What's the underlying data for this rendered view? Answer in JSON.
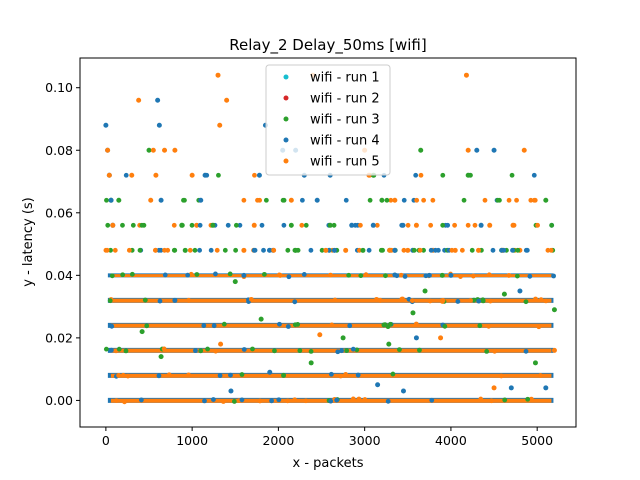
{
  "chart_data": {
    "type": "scatter",
    "title": "Relay_2 Delay_50ms [wifi]",
    "xlabel": "x - packets",
    "ylabel": "y - latency (s)",
    "xlim": [
      -300,
      5450
    ],
    "ylim": [
      -0.0085,
      0.1095
    ],
    "xticks": [
      0,
      1000,
      2000,
      3000,
      4000,
      5000
    ],
    "yticks": [
      0.0,
      0.02,
      0.04,
      0.06,
      0.08,
      0.1
    ],
    "xtick_labels": [
      "0",
      "1000",
      "2000",
      "3000",
      "4000",
      "5000"
    ],
    "ytick_labels": [
      "0.00",
      "0.02",
      "0.04",
      "0.06",
      "0.08",
      "0.10"
    ],
    "legend_position": "upper-center",
    "grid": false,
    "packet_range": [
      0,
      5200
    ],
    "latency_levels": [
      0.0,
      0.008,
      0.016,
      0.024,
      0.032,
      0.04,
      0.048,
      0.056,
      0.064,
      0.072,
      0.08,
      0.088,
      0.096,
      0.104
    ],
    "series": [
      {
        "name": "wifi - run 1",
        "color": "#17becf"
      },
      {
        "name": "wifi - run 2",
        "color": "#d62728"
      },
      {
        "name": "wifi - run 3",
        "color": "#2ca02c",
        "points": [
          [
            60,
            0.064
          ],
          [
            150,
            0.064
          ],
          [
            500,
            0.08
          ],
          [
            880,
            0.056
          ],
          [
            1500,
            0.038
          ],
          [
            1800,
            0.026
          ],
          [
            2200,
            0.048
          ],
          [
            2600,
            0.056
          ],
          [
            2750,
            0.02
          ],
          [
            3100,
            0.072
          ],
          [
            3200,
            0.064
          ],
          [
            3650,
            0.08
          ],
          [
            3700,
            0.035
          ],
          [
            4200,
            0.072
          ],
          [
            5100,
            0.064
          ],
          [
            5200,
            0.029
          ],
          [
            640,
            0.014
          ],
          [
            2380,
            0.012
          ],
          [
            3280,
            0.018
          ],
          [
            4620,
            0.034
          ],
          [
            920,
            0.048
          ],
          [
            1240,
            0.056
          ],
          [
            2980,
            0.048
          ],
          [
            3900,
            0.04
          ],
          [
            420,
            0.022
          ],
          [
            2060,
            0.008
          ],
          [
            3560,
            0.028
          ],
          [
            4980,
            0.012
          ]
        ]
      },
      {
        "name": "wifi - run 4",
        "color": "#1f77b4",
        "points": [
          [
            0,
            0.088
          ],
          [
            20,
            0.08
          ],
          [
            40,
            0.072
          ],
          [
            60,
            0.064
          ],
          [
            80,
            0.056
          ],
          [
            600,
            0.096
          ],
          [
            620,
            0.088
          ],
          [
            640,
            0.064
          ],
          [
            1100,
            0.064
          ],
          [
            1150,
            0.072
          ],
          [
            1450,
            0.003
          ],
          [
            1780,
            0.072
          ],
          [
            1850,
            0.088
          ],
          [
            2050,
            0.08
          ],
          [
            2200,
            0.08
          ],
          [
            2300,
            0.072
          ],
          [
            2450,
            0.064
          ],
          [
            2600,
            0.072
          ],
          [
            3100,
            0.056
          ],
          [
            3150,
            0.005
          ],
          [
            3450,
            0.003
          ],
          [
            3600,
            0.02
          ],
          [
            4300,
            0.08
          ],
          [
            4350,
            0.056
          ],
          [
            4500,
            0.08
          ],
          [
            4700,
            0.004
          ],
          [
            5100,
            0.004
          ],
          [
            1900,
            0.009
          ],
          [
            2650,
            0.048
          ],
          [
            3350,
            0.048
          ],
          [
            4000,
            0.04
          ],
          [
            800,
            0.032
          ],
          [
            1600,
            0.04
          ],
          [
            2850,
            0.056
          ],
          [
            3750,
            0.04
          ],
          [
            4800,
            0.035
          ]
        ]
      },
      {
        "name": "wifi - run 5",
        "color": "#ff7f0e",
        "points": [
          [
            20,
            0.08
          ],
          [
            40,
            0.072
          ],
          [
            80,
            0.056
          ],
          [
            300,
            0.072
          ],
          [
            380,
            0.096
          ],
          [
            550,
            0.08
          ],
          [
            580,
            0.072
          ],
          [
            680,
            0.08
          ],
          [
            800,
            0.08
          ],
          [
            1000,
            0.072
          ],
          [
            1300,
            0.104
          ],
          [
            1320,
            0.088
          ],
          [
            1400,
            0.096
          ],
          [
            1600,
            0.048
          ],
          [
            2150,
            0.064
          ],
          [
            2400,
            0.104
          ],
          [
            2550,
            0.048
          ],
          [
            2780,
            0.048
          ],
          [
            3000,
            0.08
          ],
          [
            3050,
            0.072
          ],
          [
            3350,
            0.064
          ],
          [
            3500,
            0.048
          ],
          [
            4050,
            0.048
          ],
          [
            4180,
            0.104
          ],
          [
            4200,
            0.08
          ],
          [
            4450,
            0.056
          ],
          [
            4500,
            0.004
          ],
          [
            4850,
            0.08
          ],
          [
            5200,
            0.016
          ],
          [
            1330,
            0.018
          ],
          [
            2480,
            0.021
          ],
          [
            3880,
            0.02
          ],
          [
            1720,
            0.056
          ],
          [
            960,
            0.032
          ],
          [
            2020,
            0.04
          ],
          [
            3180,
            0.032
          ],
          [
            4720,
            0.056
          ],
          [
            520,
            0.064
          ],
          [
            3600,
            0.056
          ],
          [
            4320,
            0.048
          ]
        ]
      }
    ]
  }
}
